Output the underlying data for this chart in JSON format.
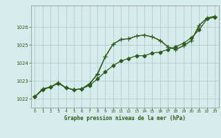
{
  "background_color": "#d6ecec",
  "grid_color": "#b0cccc",
  "line_color": "#2d5a1b",
  "xlabel": "Graphe pression niveau de la mer (hPa)",
  "ylim": [
    1021.5,
    1027.2
  ],
  "xlim": [
    -0.5,
    23.5
  ],
  "yticks": [
    1022,
    1023,
    1024,
    1025,
    1026
  ],
  "xticks": [
    0,
    1,
    2,
    3,
    4,
    5,
    6,
    7,
    8,
    9,
    10,
    11,
    12,
    13,
    14,
    15,
    16,
    17,
    18,
    19,
    20,
    21,
    22,
    23
  ],
  "series1_x": [
    0,
    1,
    2,
    3,
    4,
    5,
    6,
    7,
    8,
    9,
    10,
    11,
    12,
    13,
    14,
    15,
    16,
    17,
    18,
    19,
    20,
    21,
    22,
    23
  ],
  "series1_y": [
    1022.1,
    1022.5,
    1022.65,
    1022.85,
    1022.6,
    1022.5,
    1022.55,
    1022.75,
    1023.1,
    1023.5,
    1023.85,
    1024.1,
    1024.25,
    1024.4,
    1024.4,
    1024.55,
    1024.6,
    1024.75,
    1024.9,
    1025.1,
    1025.4,
    1025.85,
    1026.45,
    1026.55
  ],
  "series2_x": [
    0,
    1,
    2,
    3,
    4,
    5,
    6,
    7,
    8,
    9,
    10,
    11,
    12,
    13,
    14,
    15,
    16,
    17,
    18,
    19,
    20,
    21,
    22,
    23
  ],
  "series2_y": [
    1022.1,
    1022.55,
    1022.65,
    1022.9,
    1022.6,
    1022.5,
    1022.55,
    1022.8,
    1023.4,
    1024.35,
    1025.05,
    1025.3,
    1025.35,
    1025.5,
    1025.55,
    1025.45,
    1025.25,
    1024.9,
    1024.75,
    1024.95,
    1025.25,
    1026.1,
    1026.5,
    1026.6
  ],
  "series3_x": [
    0,
    1,
    2,
    3,
    4,
    5,
    6,
    7,
    8,
    9,
    10,
    11,
    12,
    13,
    14,
    15,
    16,
    17,
    18,
    19,
    20,
    21,
    22,
    23
  ],
  "series3_y": [
    1022.1,
    1022.55,
    1022.65,
    1022.9,
    1022.6,
    1022.5,
    1022.55,
    1022.85,
    1023.35,
    1024.35,
    1025.05,
    1025.3,
    1025.35,
    1025.5,
    1025.55,
    1025.45,
    1025.25,
    1024.9,
    1024.75,
    1024.95,
    1025.25,
    1026.1,
    1026.5,
    1026.6
  ]
}
